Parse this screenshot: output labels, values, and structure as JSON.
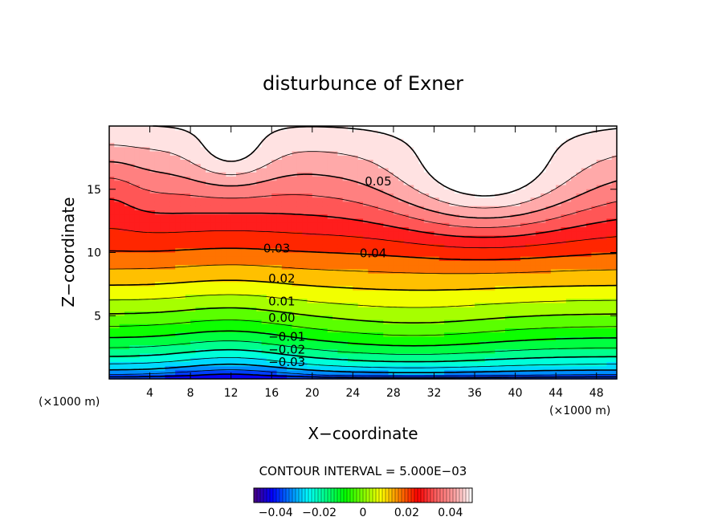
{
  "chart_data": {
    "type": "heatmap",
    "title": "disturbunce of Exner",
    "xlabel": "X−coordinate",
    "ylabel": "Z−coordinate",
    "x_unit": "(×1000 m)",
    "x_unit_right": "(×1000 m)",
    "xlim": [
      0,
      50
    ],
    "ylim": [
      0,
      20
    ],
    "x_ticks": [
      "4",
      "8",
      "12",
      "16",
      "20",
      "24",
      "28",
      "32",
      "36",
      "40",
      "44",
      "48"
    ],
    "y_ticks": [
      "5",
      "10",
      "15"
    ],
    "contour_interval_text": "CONTOUR INTERVAL = 5.000E−03",
    "contour_levels": [
      -0.04,
      -0.035,
      -0.03,
      -0.025,
      -0.02,
      -0.015,
      -0.01,
      -0.005,
      0.0,
      0.005,
      0.01,
      0.015,
      0.02,
      0.025,
      0.03,
      0.035,
      0.04,
      0.045,
      0.05
    ],
    "value_range": [
      -0.05,
      0.05
    ],
    "contour_labels": [
      {
        "text": "0.05",
        "x": 26.5,
        "z": 15.6
      },
      {
        "text": "0.04",
        "x": 26.0,
        "z": 9.9
      },
      {
        "text": "0.03",
        "x": 16.5,
        "z": 10.3
      },
      {
        "text": "0.02",
        "x": 17.0,
        "z": 7.9
      },
      {
        "text": "0.01",
        "x": 17.0,
        "z": 6.1
      },
      {
        "text": "0.00",
        "x": 17.0,
        "z": 4.8
      },
      {
        "text": "−0.01",
        "x": 17.5,
        "z": 3.3
      },
      {
        "text": "−0.02",
        "x": 17.5,
        "z": 2.3
      },
      {
        "text": "−0.03",
        "x": 17.5,
        "z": 1.3
      }
    ],
    "colorbar": {
      "ticks": [
        "−0.04",
        "−0.02",
        "0",
        "0.02",
        "0.04"
      ],
      "tick_values": [
        -0.04,
        -0.02,
        0,
        0.02,
        0.04
      ],
      "range": [
        -0.05,
        0.05
      ]
    },
    "colormap": [
      "#4a0080",
      "#0000ff",
      "#0080ff",
      "#00ffff",
      "#00ff80",
      "#00ff00",
      "#80ff00",
      "#ffff00",
      "#ff8000",
      "#ff0000",
      "#ff6060",
      "#ffa0a0",
      "#ffffff"
    ],
    "max_region_fill": "#ffffff"
  }
}
